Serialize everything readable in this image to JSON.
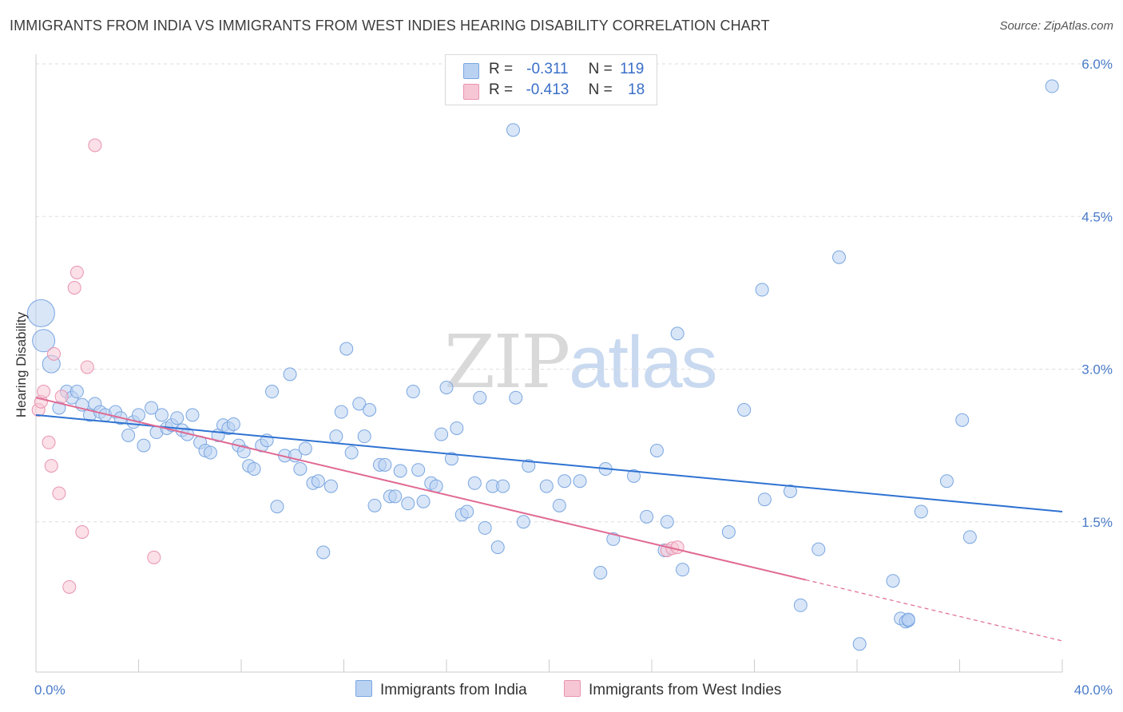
{
  "header": {
    "title": "IMMIGRANTS FROM INDIA VS IMMIGRANTS FROM WEST INDIES HEARING DISABILITY CORRELATION CHART",
    "source": "Source: ZipAtlas.com"
  },
  "watermark": {
    "zip": "ZIP",
    "atlas": "atlas"
  },
  "legend": {
    "rows": [
      {
        "r_label": "R =",
        "r_value": "-0.311",
        "n_label": "N =",
        "n_value": "119"
      },
      {
        "r_label": "R =",
        "r_value": "-0.413",
        "n_label": "N =",
        "n_value": "18"
      }
    ]
  },
  "bottom_legend": {
    "india": "Immigrants from India",
    "west_indies": "Immigrants from West Indies"
  },
  "colors": {
    "india_fill": "#b9d2f2",
    "india_stroke": "#7aa6e0",
    "india_line": "#2f72d2",
    "wi_fill": "#f7c6d5",
    "wi_stroke": "#e993b0",
    "wi_line": "#e06a93",
    "grid": "#dddddd",
    "tick_label": "#4a7bc8"
  },
  "chart_data": {
    "type": "scatter",
    "title": "IMMIGRANTS FROM INDIA VS IMMIGRANTS FROM WEST INDIES HEARING DISABILITY CORRELATION CHART",
    "ylabel": "Hearing Disability",
    "xlabel": "",
    "xlim": [
      0,
      40
    ],
    "ylim": [
      0,
      6.2
    ],
    "x_tick_labels": [
      "0.0%",
      "40.0%"
    ],
    "y_ticks": [
      1.5,
      3.0,
      4.5,
      6.0
    ],
    "y_tick_labels": [
      "1.5%",
      "3.0%",
      "4.5%",
      "6.0%"
    ],
    "grid": true,
    "legend_position": "top-center",
    "series": [
      {
        "name": "Immigrants from India",
        "r": -0.311,
        "n": 119,
        "trend": {
          "x": [
            0,
            40
          ],
          "y": [
            2.55,
            1.6
          ]
        },
        "points": [
          [
            0.2,
            3.55
          ],
          [
            0.3,
            3.28
          ],
          [
            0.6,
            3.05
          ],
          [
            0.9,
            2.62
          ],
          [
            1.2,
            2.78
          ],
          [
            1.4,
            2.72
          ],
          [
            1.6,
            2.78
          ],
          [
            1.8,
            2.65
          ],
          [
            2.1,
            2.55
          ],
          [
            2.3,
            2.66
          ],
          [
            2.5,
            2.58
          ],
          [
            2.7,
            2.55
          ],
          [
            3.1,
            2.58
          ],
          [
            3.3,
            2.52
          ],
          [
            3.6,
            2.35
          ],
          [
            3.8,
            2.48
          ],
          [
            4.0,
            2.55
          ],
          [
            4.2,
            2.25
          ],
          [
            4.5,
            2.62
          ],
          [
            4.7,
            2.38
          ],
          [
            4.9,
            2.55
          ],
          [
            5.1,
            2.42
          ],
          [
            5.3,
            2.45
          ],
          [
            5.5,
            2.52
          ],
          [
            5.7,
            2.4
          ],
          [
            5.9,
            2.36
          ],
          [
            6.1,
            2.55
          ],
          [
            6.4,
            2.28
          ],
          [
            6.6,
            2.2
          ],
          [
            6.8,
            2.18
          ],
          [
            7.1,
            2.35
          ],
          [
            7.3,
            2.45
          ],
          [
            7.5,
            2.42
          ],
          [
            7.7,
            2.46
          ],
          [
            7.9,
            2.25
          ],
          [
            8.1,
            2.19
          ],
          [
            8.3,
            2.05
          ],
          [
            8.5,
            2.02
          ],
          [
            8.8,
            2.25
          ],
          [
            9.0,
            2.3
          ],
          [
            9.2,
            2.78
          ],
          [
            9.4,
            1.65
          ],
          [
            9.7,
            2.15
          ],
          [
            9.9,
            2.95
          ],
          [
            10.1,
            2.15
          ],
          [
            10.3,
            2.02
          ],
          [
            10.5,
            2.22
          ],
          [
            10.8,
            1.88
          ],
          [
            11.0,
            1.9
          ],
          [
            11.2,
            1.2
          ],
          [
            11.5,
            1.85
          ],
          [
            11.7,
            2.34
          ],
          [
            11.9,
            2.58
          ],
          [
            12.1,
            3.2
          ],
          [
            12.3,
            2.18
          ],
          [
            12.6,
            2.66
          ],
          [
            12.8,
            2.34
          ],
          [
            13.0,
            2.6
          ],
          [
            13.2,
            1.66
          ],
          [
            13.4,
            2.06
          ],
          [
            13.6,
            2.06
          ],
          [
            13.8,
            1.75
          ],
          [
            14.0,
            1.75
          ],
          [
            14.2,
            2.0
          ],
          [
            14.5,
            1.68
          ],
          [
            14.7,
            2.78
          ],
          [
            14.9,
            2.01
          ],
          [
            15.1,
            1.7
          ],
          [
            15.4,
            1.88
          ],
          [
            15.6,
            1.85
          ],
          [
            15.8,
            2.36
          ],
          [
            16.0,
            2.82
          ],
          [
            16.2,
            2.12
          ],
          [
            16.4,
            2.42
          ],
          [
            16.6,
            1.57
          ],
          [
            16.8,
            1.6
          ],
          [
            17.1,
            1.88
          ],
          [
            17.3,
            2.72
          ],
          [
            17.5,
            1.44
          ],
          [
            17.8,
            1.85
          ],
          [
            18.0,
            1.25
          ],
          [
            18.2,
            1.85
          ],
          [
            18.6,
            5.35
          ],
          [
            18.7,
            2.72
          ],
          [
            19.0,
            1.5
          ],
          [
            19.2,
            2.05
          ],
          [
            19.9,
            1.85
          ],
          [
            20.4,
            1.66
          ],
          [
            20.6,
            1.9
          ],
          [
            21.2,
            1.9
          ],
          [
            22.0,
            1.0
          ],
          [
            22.2,
            2.02
          ],
          [
            22.5,
            1.33
          ],
          [
            23.3,
            1.95
          ],
          [
            23.8,
            1.55
          ],
          [
            24.2,
            2.2
          ],
          [
            24.5,
            1.22
          ],
          [
            24.6,
            1.5
          ],
          [
            25.0,
            3.35
          ],
          [
            25.2,
            1.03
          ],
          [
            27.0,
            1.4
          ],
          [
            27.6,
            2.6
          ],
          [
            28.3,
            3.78
          ],
          [
            28.4,
            1.72
          ],
          [
            29.4,
            1.8
          ],
          [
            29.8,
            0.68
          ],
          [
            30.5,
            1.23
          ],
          [
            31.3,
            4.1
          ],
          [
            32.1,
            0.3
          ],
          [
            33.4,
            0.92
          ],
          [
            33.7,
            0.55
          ],
          [
            33.9,
            0.52
          ],
          [
            34.0,
            0.53
          ],
          [
            34.0,
            0.54
          ],
          [
            34.5,
            1.6
          ],
          [
            35.5,
            1.9
          ],
          [
            36.1,
            2.5
          ],
          [
            36.4,
            1.35
          ],
          [
            39.6,
            5.78
          ]
        ],
        "big_points": [
          [
            0.2,
            3.55
          ],
          [
            0.3,
            3.28
          ],
          [
            0.6,
            3.05
          ]
        ]
      },
      {
        "name": "Immigrants from West Indies",
        "r": -0.413,
        "n": 18,
        "trend": {
          "x": [
            0,
            30
          ],
          "y": [
            2.72,
            0.93
          ]
        },
        "trend_dashed": {
          "x": [
            30,
            40
          ],
          "y": [
            0.93,
            0.33
          ]
        },
        "points": [
          [
            0.1,
            2.6
          ],
          [
            0.2,
            2.68
          ],
          [
            0.3,
            2.78
          ],
          [
            0.5,
            2.28
          ],
          [
            0.6,
            2.05
          ],
          [
            0.7,
            3.15
          ],
          [
            0.9,
            1.78
          ],
          [
            1.0,
            2.73
          ],
          [
            1.3,
            0.86
          ],
          [
            1.5,
            3.8
          ],
          [
            1.6,
            3.95
          ],
          [
            1.8,
            1.4
          ],
          [
            2.0,
            3.02
          ],
          [
            2.3,
            5.2
          ],
          [
            4.6,
            1.15
          ],
          [
            24.6,
            1.22
          ],
          [
            24.8,
            1.24
          ],
          [
            25.0,
            1.25
          ]
        ]
      }
    ]
  }
}
